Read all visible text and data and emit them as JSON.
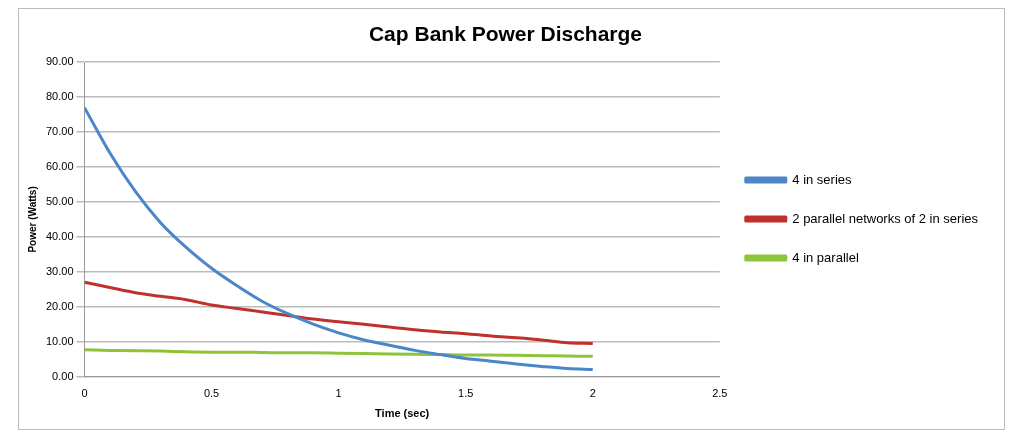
{
  "chart_data": {
    "type": "line",
    "title": "Cap Bank Power Discharge",
    "xlabel": "Time (sec)",
    "ylabel": "Power (Watts)",
    "x": [
      0,
      0.1,
      0.2,
      0.3,
      0.4,
      0.5,
      0.6,
      0.7,
      0.8,
      0.9,
      1,
      1.1,
      1.2,
      1.3,
      1.4,
      1.5,
      1.6,
      1.7,
      1.8,
      1.9,
      2
    ],
    "series": [
      {
        "name": "4 in series",
        "color": "#4a86c8",
        "values": [
          77,
          64,
          53,
          44,
          37,
          31,
          26,
          21.5,
          18,
          15,
          12.5,
          10.5,
          9,
          7.5,
          6.3,
          5.2,
          4.4,
          3.6,
          2.9,
          2.3,
          2
        ]
      },
      {
        "name": "2 parallel networks of 2 in series",
        "color": "#c0302c",
        "values": [
          27,
          25.5,
          24,
          23,
          22,
          20.5,
          19.5,
          18.5,
          17.5,
          16.5,
          15.7,
          15,
          14.2,
          13.4,
          12.8,
          12.3,
          11.6,
          11.1,
          10.5,
          9.7,
          9.5
        ]
      },
      {
        "name": "4 in parallel",
        "color": "#8cc43c",
        "values": [
          7.7,
          7.5,
          7.4,
          7.3,
          7.1,
          7,
          7,
          6.9,
          6.8,
          6.8,
          6.7,
          6.6,
          6.5,
          6.4,
          6.3,
          6.2,
          6.2,
          6.1,
          6,
          5.9,
          5.8
        ]
      }
    ],
    "xlim": [
      0,
      2.5
    ],
    "xticks": [
      0,
      0.5,
      1,
      1.5,
      2,
      2.5
    ],
    "ylim": [
      0,
      90
    ],
    "yticks": [
      {
        "value": 0,
        "label": "0.00"
      },
      {
        "value": 10,
        "label": "10.00"
      },
      {
        "value": 20,
        "label": "20.00"
      },
      {
        "value": 30,
        "label": "30.00"
      },
      {
        "value": 40,
        "label": "40.00"
      },
      {
        "value": 50,
        "label": "50.00"
      },
      {
        "value": 60,
        "label": "60.00"
      },
      {
        "value": 70,
        "label": "70.00"
      },
      {
        "value": 80,
        "label": "80.00"
      },
      {
        "value": 90,
        "label": "90.00"
      }
    ],
    "grid": "y",
    "legend": "right",
    "marker": "none",
    "line_style": "solid"
  }
}
